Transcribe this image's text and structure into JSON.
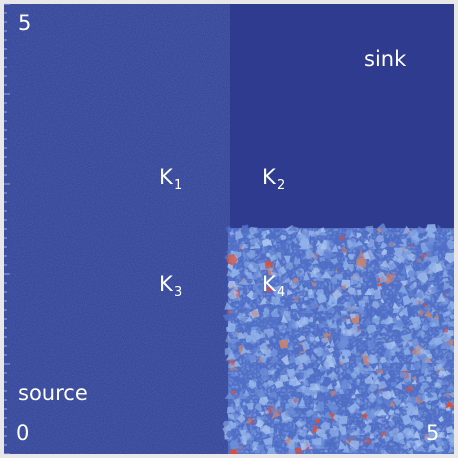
{
  "plot": {
    "corner_labels": {
      "origin": "0",
      "x_max": "5",
      "y_max": "5"
    },
    "region_labels": {
      "source": "source",
      "sink": "sink"
    },
    "subdomains": [
      {
        "letter": "K",
        "index": "1"
      },
      {
        "letter": "K",
        "index": "2"
      },
      {
        "letter": "K",
        "index": "3"
      },
      {
        "letter": "K",
        "index": "4"
      }
    ]
  },
  "colors": {
    "frame": "#e8e8e8",
    "background_low": "#2f3f93",
    "background_high_upper_right": "#2e3b8f",
    "mesh_base": "#4f6ec6",
    "mesh_light": "#8fb0e8",
    "mesh_warm": "#c78472",
    "mesh_hot": "#d9503a"
  }
}
